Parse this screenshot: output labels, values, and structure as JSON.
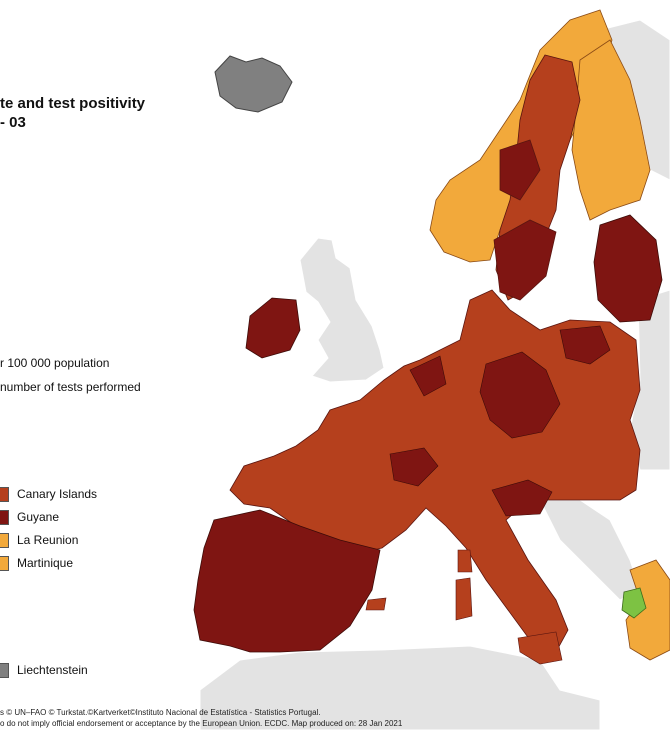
{
  "map": {
    "title": "te and test positivity",
    "subtitle": "- 03",
    "legend_text": {
      "population": "r 100 000 population",
      "tests": "number of tests performed"
    },
    "legend_items": [
      {
        "label": "Canary Islands",
        "color": "#B5401D"
      },
      {
        "label": "Guyane",
        "color": "#7F1512"
      },
      {
        "label": "La Reunion",
        "color": "#F2A93B"
      },
      {
        "label": "Martinique",
        "color": "#F2A93B"
      },
      {
        "label": "Liechtenstein",
        "color": "#808080"
      }
    ],
    "footer": {
      "line1": "s © UN–FAO © Turkstat.©Kartverket©Instituto Nacional de Estatística - Statistics Portugal.",
      "line2": "o do not imply official endorsement or acceptance by the European Union. ECDC. Map produced on: 28 Jan 2021"
    },
    "colors": {
      "dark_red": "#7F1512",
      "red": "#B5401D",
      "orange": "#F2A93B",
      "green": "#7DC243",
      "grey_nodata": "#808080",
      "non_eu": "#E3E3E3",
      "sea": "#FFFFFF"
    }
  }
}
